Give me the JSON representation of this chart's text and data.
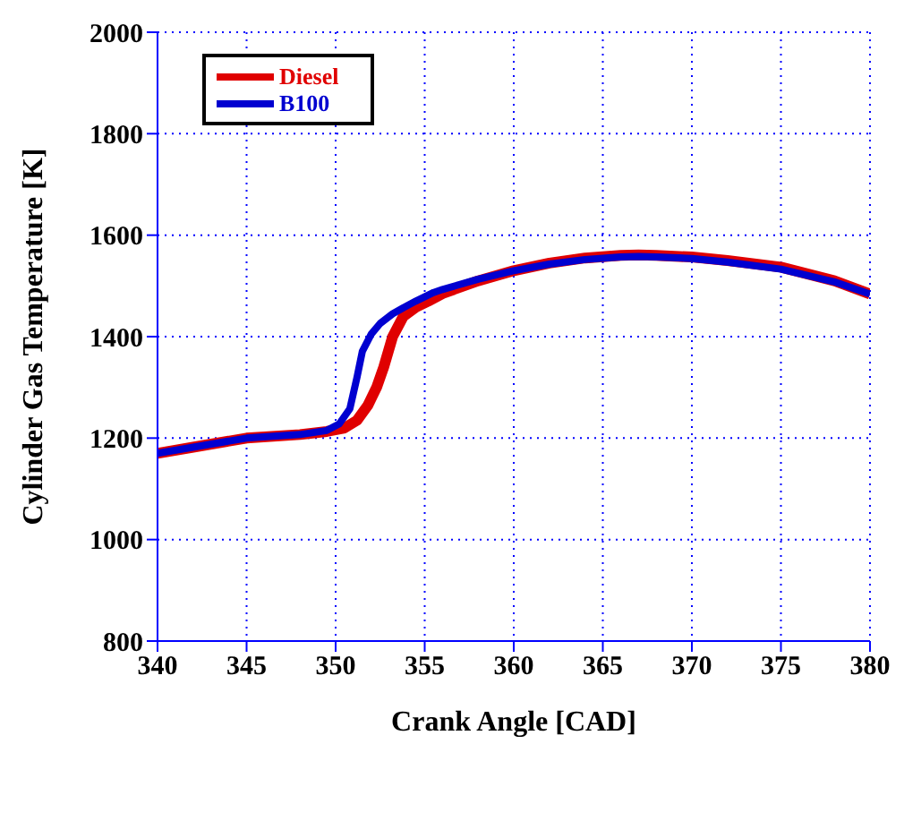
{
  "chart_data": {
    "type": "line",
    "xlabel": "Crank Angle [CAD]",
    "ylabel": "Cylinder Gas Temperature [K]",
    "xlim": [
      340,
      380
    ],
    "ylim": [
      800,
      2000
    ],
    "xticks": [
      340,
      345,
      350,
      355,
      360,
      365,
      370,
      375,
      380
    ],
    "yticks": [
      800,
      1000,
      1200,
      1400,
      1600,
      1800,
      2000
    ],
    "grid": true,
    "legend": "top left",
    "marker": "none",
    "line_style": "solid",
    "series": [
      {
        "name": "Diesel",
        "color": "#e00000",
        "x": [
          340,
          342,
          345,
          348,
          349.5,
          350.5,
          351.2,
          351.8,
          352.3,
          352.7,
          353.2,
          353.8,
          354.5,
          355.2,
          356,
          358,
          360,
          362,
          364,
          366,
          367,
          368,
          370,
          372,
          375,
          378,
          380
        ],
        "values": [
          1170,
          1182,
          1200,
          1207,
          1213,
          1220,
          1235,
          1264,
          1300,
          1340,
          1400,
          1440,
          1458,
          1470,
          1485,
          1510,
          1530,
          1545,
          1555,
          1560,
          1561,
          1560,
          1557,
          1550,
          1537,
          1510,
          1484
        ]
      },
      {
        "name": "B100",
        "color": "#0000d0",
        "x": [
          340,
          342,
          345,
          348,
          349.5,
          350.2,
          350.8,
          351.2,
          351.5,
          352,
          352.5,
          353.2,
          353.8,
          354.5,
          355.5,
          356,
          358,
          360,
          362,
          364,
          366,
          367,
          368,
          370,
          372,
          375,
          378,
          380
        ],
        "values": [
          1170,
          1182,
          1200,
          1207,
          1215,
          1228,
          1258,
          1320,
          1371,
          1405,
          1426,
          1445,
          1457,
          1470,
          1487,
          1493,
          1513,
          1530,
          1543,
          1552,
          1557,
          1558,
          1557,
          1554,
          1547,
          1533,
          1508,
          1484
        ]
      }
    ]
  }
}
